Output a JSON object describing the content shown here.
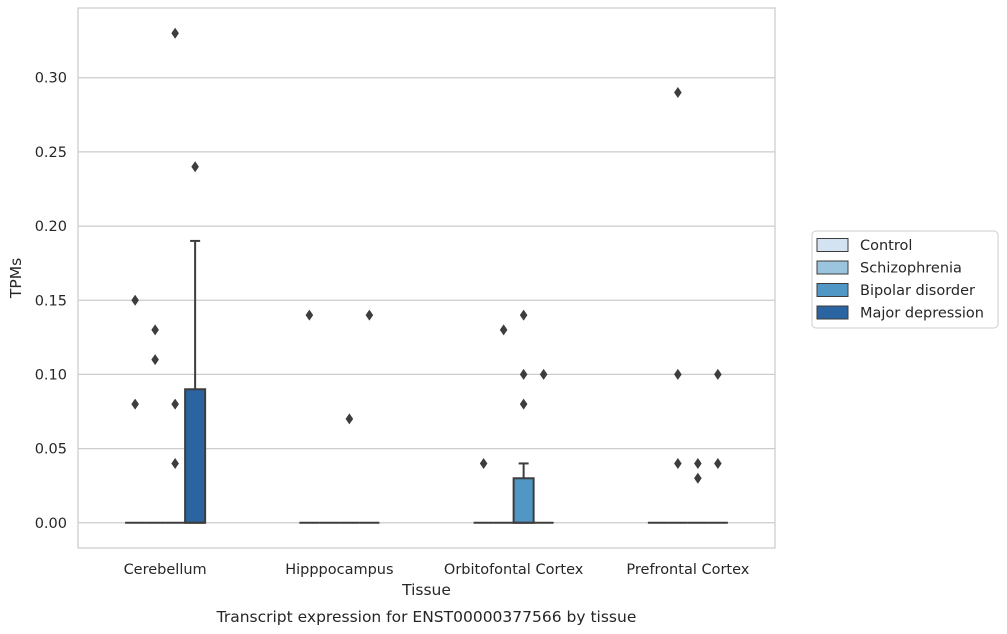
{
  "chart_data": {
    "type": "box",
    "title": "",
    "xlabel": "Tissue",
    "ylabel": "TPMs",
    "caption": "Transcript expression for ENST00000377566 by tissue",
    "categories": [
      "Cerebellum",
      "Hipppocampus",
      "Orbitofontal Cortex",
      "Prefrontal Cortex"
    ],
    "ylim": [
      -0.017,
      0.347
    ],
    "yticks": [
      0.0,
      0.05,
      0.1,
      0.15,
      0.2,
      0.25,
      0.3
    ],
    "ytick_labels": [
      "0.00",
      "0.05",
      "0.10",
      "0.15",
      "0.20",
      "0.25",
      "0.30"
    ],
    "grid": "horizontal",
    "legend": {
      "placement": "right",
      "entries": [
        {
          "name": "Control",
          "color": "#d4e3f1"
        },
        {
          "name": "Schizophrenia",
          "color": "#9bc4df"
        },
        {
          "name": "Bipolar disorder",
          "color": "#5097c5"
        },
        {
          "name": "Major depression",
          "color": "#2a64a1"
        }
      ]
    },
    "series": [
      {
        "name": "Control",
        "boxes": [
          {
            "category": "Cerebellum",
            "q1": 0,
            "median": 0,
            "q3": 0,
            "whisker_low": 0,
            "whisker_high": 0,
            "outliers": [
              0.15,
              0.08
            ]
          },
          {
            "category": "Hipppocampus",
            "q1": 0,
            "median": 0,
            "q3": 0,
            "whisker_low": 0,
            "whisker_high": 0,
            "outliers": [
              0.14
            ]
          },
          {
            "category": "Orbitofontal Cortex",
            "q1": 0,
            "median": 0,
            "q3": 0,
            "whisker_low": 0,
            "whisker_high": 0,
            "outliers": [
              0.04
            ]
          },
          {
            "category": "Prefrontal Cortex",
            "q1": 0,
            "median": 0,
            "q3": 0,
            "whisker_low": 0,
            "whisker_high": 0,
            "outliers": []
          }
        ]
      },
      {
        "name": "Schizophrenia",
        "boxes": [
          {
            "category": "Cerebellum",
            "q1": 0,
            "median": 0,
            "q3": 0,
            "whisker_low": 0,
            "whisker_high": 0,
            "outliers": [
              0.13,
              0.11
            ]
          },
          {
            "category": "Hipppocampus",
            "q1": 0,
            "median": 0,
            "q3": 0,
            "whisker_low": 0,
            "whisker_high": 0,
            "outliers": []
          },
          {
            "category": "Orbitofontal Cortex",
            "q1": 0,
            "median": 0,
            "q3": 0,
            "whisker_low": 0,
            "whisker_high": 0,
            "outliers": [
              0.13
            ]
          },
          {
            "category": "Prefrontal Cortex",
            "q1": 0,
            "median": 0,
            "q3": 0,
            "whisker_low": 0,
            "whisker_high": 0,
            "outliers": [
              0.29,
              0.1,
              0.04
            ]
          }
        ]
      },
      {
        "name": "Bipolar disorder",
        "boxes": [
          {
            "category": "Cerebellum",
            "q1": 0,
            "median": 0,
            "q3": 0,
            "whisker_low": 0,
            "whisker_high": 0,
            "outliers": [
              0.33,
              0.08,
              0.04
            ]
          },
          {
            "category": "Hipppocampus",
            "q1": 0,
            "median": 0,
            "q3": 0,
            "whisker_low": 0,
            "whisker_high": 0,
            "outliers": [
              0.07
            ]
          },
          {
            "category": "Orbitofontal Cortex",
            "q1": 0,
            "median": 0,
            "q3": 0.03,
            "whisker_low": 0,
            "whisker_high": 0.04,
            "outliers": [
              0.14,
              0.1,
              0.08
            ]
          },
          {
            "category": "Prefrontal Cortex",
            "q1": 0,
            "median": 0,
            "q3": 0,
            "whisker_low": 0,
            "whisker_high": 0,
            "outliers": [
              0.04,
              0.03
            ]
          }
        ]
      },
      {
        "name": "Major depression",
        "boxes": [
          {
            "category": "Cerebellum",
            "q1": 0,
            "median": 0,
            "q3": 0.09,
            "whisker_low": 0,
            "whisker_high": 0.19,
            "outliers": [
              0.24
            ]
          },
          {
            "category": "Hipppocampus",
            "q1": 0,
            "median": 0,
            "q3": 0,
            "whisker_low": 0,
            "whisker_high": 0,
            "outliers": [
              0.14
            ]
          },
          {
            "category": "Orbitofontal Cortex",
            "q1": 0,
            "median": 0,
            "q3": 0,
            "whisker_low": 0,
            "whisker_high": 0,
            "outliers": [
              0.1
            ]
          },
          {
            "category": "Prefrontal Cortex",
            "q1": 0,
            "median": 0,
            "q3": 0,
            "whisker_low": 0,
            "whisker_high": 0,
            "outliers": [
              0.1,
              0.04
            ]
          }
        ]
      }
    ]
  }
}
